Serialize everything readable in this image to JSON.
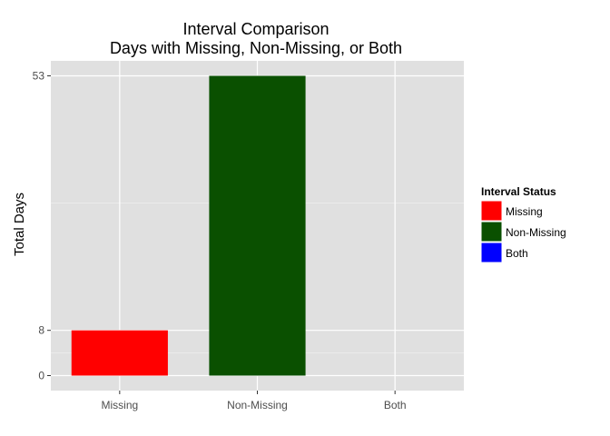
{
  "chart_data": {
    "type": "bar",
    "title": "Interval Comparison",
    "subtitle": "Days with Missing, Non-Missing, or Both",
    "xlabel": "",
    "ylabel": "Total Days",
    "categories": [
      "Missing",
      "Non-Missing",
      "Both"
    ],
    "values": [
      8,
      53,
      0
    ],
    "colors": [
      "#ff0000",
      "#0a5000",
      "#0000ff"
    ],
    "ylim": [
      -2.65,
      55.65
    ],
    "yticks": [
      0,
      8,
      53
    ],
    "ytick_labels": [
      "0",
      "8",
      "53"
    ],
    "grid": true,
    "panel_background": "#e0e0e0",
    "legend": {
      "position": "right",
      "title": "Interval Status",
      "entries": [
        "Missing",
        "Non-Missing",
        "Both"
      ]
    }
  }
}
